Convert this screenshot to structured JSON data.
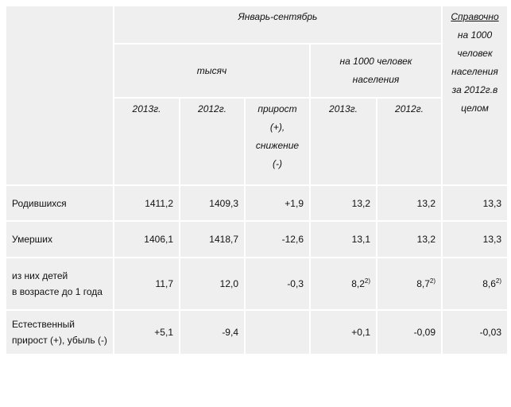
{
  "header": {
    "period": "Январь-сентябрь",
    "reference_title": "Справочно",
    "reference_rest": [
      "на 1000",
      "человек",
      "населения",
      "за 2012г.в",
      "целом"
    ],
    "thousands": "тысяч",
    "per1000": [
      "на 1000 человек",
      "населения"
    ],
    "y2013": "2013г.",
    "y2012": "2012г.",
    "change": [
      "прирост",
      "(+),",
      "снижение",
      "(-)"
    ],
    "y2013b": "2013г.",
    "y2012b": "2012г."
  },
  "rows": [
    {
      "label": [
        "Родившихся"
      ],
      "values": [
        "1411,2",
        "1409,3",
        "+1,9",
        "13,2",
        "13,2",
        "13,3"
      ]
    },
    {
      "label": [
        "Умерших"
      ],
      "values": [
        "1406,1",
        "1418,7",
        "-12,6",
        "13,1",
        "13,2",
        "13,3"
      ]
    },
    {
      "label": [
        "из них детей",
        "в возрасте до 1 года"
      ],
      "values": [
        "11,7",
        "12,0",
        "-0,3",
        "8,2",
        "8,7",
        "8,6"
      ],
      "sup": "2)"
    },
    {
      "label": [
        "Естественный",
        "прирост (+), убыль (-)"
      ],
      "values": [
        "+5,1",
        "-9,4",
        "",
        "+0,1",
        "-0,09",
        "-0,03"
      ]
    }
  ]
}
